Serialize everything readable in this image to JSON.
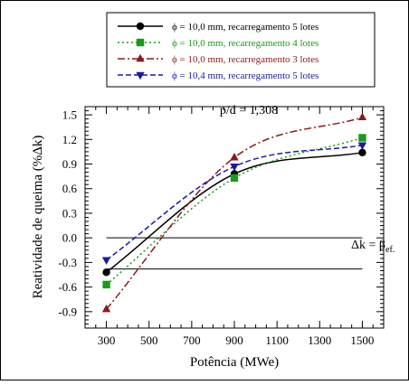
{
  "chart_data": {
    "type": "line",
    "xlabel": "Potência (MWe)",
    "ylabel": "Reatividade de queima (%Δk)",
    "xlim": [
      200,
      1600
    ],
    "ylim": [
      -1.1,
      1.6
    ],
    "xticks": [
      "300",
      "500",
      "700",
      "900",
      "1100",
      "1300",
      "1500"
    ],
    "yticks": [
      "1.5",
      "1.2",
      "0.9",
      "0.6",
      "0.3",
      "0.0",
      "-0.3",
      "-0.6",
      "-0.9"
    ],
    "annotations": {
      "ratio": "p/d = 1,308",
      "beta_prefix": "Δk = β",
      "beta_sub": "ef."
    },
    "reference_lines": [
      0.0,
      -0.38
    ],
    "series": [
      {
        "name": "ϕ = 10,0 mm, recarregamento 5 lotes",
        "color": "#000000",
        "marker": "circle",
        "dash": "",
        "x": [
          300,
          900,
          1500
        ],
        "y": [
          -0.42,
          0.78,
          1.04
        ]
      },
      {
        "name": "ϕ = 10,0 mm, recarregamento 4 lotes",
        "color": "#1a9a1a",
        "marker": "square",
        "dash": "2 3",
        "x": [
          300,
          900,
          1500
        ],
        "y": [
          -0.57,
          0.73,
          1.22
        ]
      },
      {
        "name": "ϕ = 10,0 mm, recarregamento 3 lotes",
        "color": "#8b1a1a",
        "marker": "triangle-up",
        "dash": "8 3 2 3",
        "x": [
          300,
          900,
          1500
        ],
        "y": [
          -0.87,
          0.98,
          1.47
        ]
      },
      {
        "name": "ϕ = 10,4 mm, recarregamento 5 lotes",
        "color": "#1a1aa0",
        "marker": "triangle-down",
        "dash": "6 3",
        "x": [
          300,
          900,
          1500
        ],
        "y": [
          -0.27,
          0.87,
          1.13
        ]
      }
    ]
  }
}
